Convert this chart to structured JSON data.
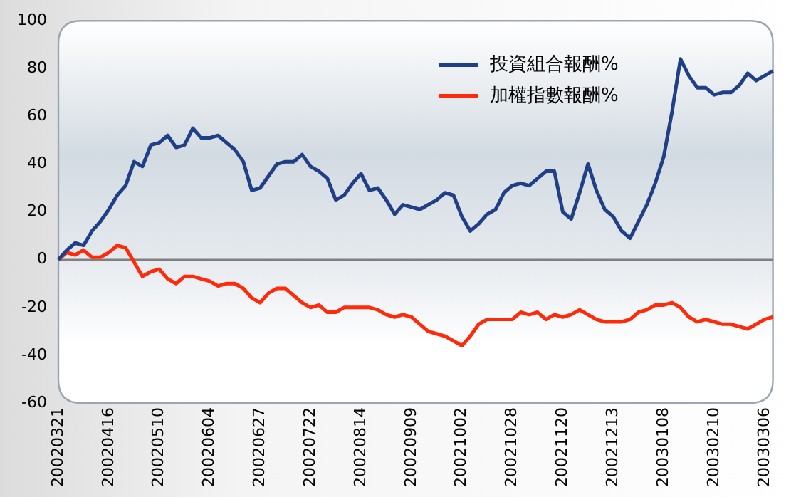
{
  "chart_data": {
    "type": "line",
    "categories": [
      "20020321",
      null,
      null,
      null,
      null,
      null,
      "20020416",
      null,
      null,
      null,
      null,
      null,
      "20020510",
      null,
      null,
      null,
      null,
      null,
      "20020604",
      null,
      null,
      null,
      null,
      null,
      "20020627",
      null,
      null,
      null,
      null,
      null,
      "20020722",
      null,
      null,
      null,
      null,
      null,
      "20020814",
      null,
      null,
      null,
      null,
      null,
      "20020909",
      null,
      null,
      null,
      null,
      null,
      "20021002",
      null,
      null,
      null,
      null,
      null,
      "20021028",
      null,
      null,
      null,
      null,
      null,
      "20021120",
      null,
      null,
      null,
      null,
      null,
      "20021213",
      null,
      null,
      null,
      null,
      null,
      "20030108",
      null,
      null,
      null,
      null,
      null,
      "20030210",
      null,
      null,
      null,
      null,
      null,
      "20030306",
      null
    ],
    "series": [
      {
        "name": "投資組合報酬%",
        "color": "#1f3f86",
        "values": [
          0,
          4,
          7,
          6,
          12,
          16,
          21,
          27,
          31,
          41,
          39,
          48,
          49,
          52,
          47,
          48,
          55,
          51,
          51,
          52,
          49,
          46,
          41,
          29,
          30,
          35,
          40,
          41,
          41,
          44,
          39,
          37,
          34,
          25,
          27,
          32,
          36,
          29,
          30,
          25,
          19,
          23,
          22,
          21,
          23,
          25,
          28,
          27,
          18,
          12,
          15,
          19,
          21,
          28,
          31,
          32,
          31,
          34,
          37,
          37,
          20,
          17,
          28,
          40,
          29,
          21,
          18,
          12,
          9,
          16,
          23,
          32,
          43,
          62,
          84,
          77,
          72,
          72,
          69,
          70,
          70,
          73,
          78,
          75,
          77,
          79
        ]
      },
      {
        "name": "加權指數報酬%",
        "color": "#ff2a0a",
        "values": [
          0,
          3,
          2,
          4,
          1,
          1,
          3,
          6,
          5,
          -1,
          -7,
          -5,
          -4,
          -8,
          -10,
          -7,
          -7,
          -8,
          -9,
          -11,
          -10,
          -10,
          -12,
          -16,
          -18,
          -14,
          -12,
          -12,
          -15,
          -18,
          -20,
          -19,
          -22,
          -22,
          -20,
          -20,
          -20,
          -20,
          -21,
          -23,
          -24,
          -23,
          -24,
          -27,
          -30,
          -31,
          -32,
          -34,
          -36,
          -32,
          -27,
          -25,
          -25,
          -25,
          -25,
          -22,
          -23,
          -22,
          -25,
          -23,
          -24,
          -23,
          -21,
          -23,
          -25,
          -26,
          -26,
          -26,
          -25,
          -22,
          -21,
          -19,
          -19,
          -18,
          -20,
          -24,
          -26,
          -25,
          -26,
          -27,
          -27,
          -28,
          -29,
          -27,
          -25,
          -24
        ]
      }
    ],
    "ylim": [
      -60,
      100
    ],
    "yticks": [
      -60,
      -40,
      -20,
      0,
      20,
      40,
      60,
      80,
      100
    ],
    "ref_lines": [
      {
        "axis": "y",
        "value": 0,
        "color": "#7f7f7f"
      }
    ],
    "grid": false,
    "legend": "top right",
    "marker": "none",
    "line_style": "solid"
  }
}
